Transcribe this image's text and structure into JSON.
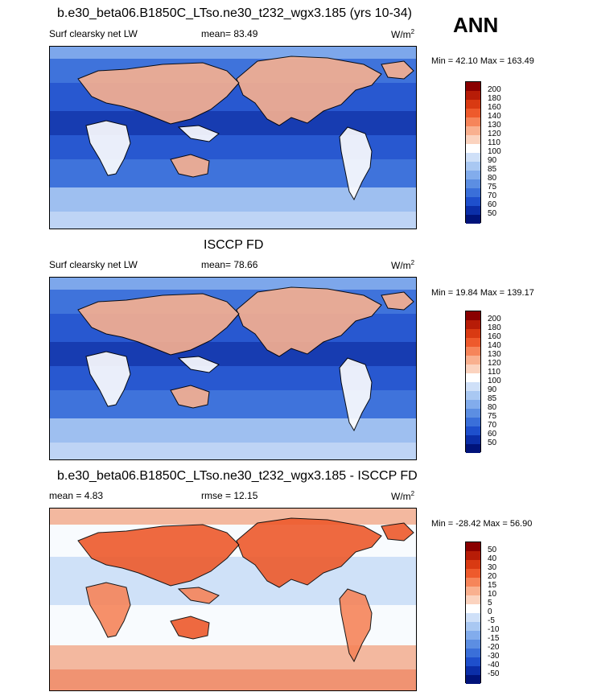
{
  "season": "ANN",
  "panels": [
    {
      "title": "b.e30_beta06.B1850C_LTso.ne30_t232_wgx3.185 (yrs 10-34)",
      "left_label": "Surf clearsky net LW",
      "stat_label": "mean=  83.49",
      "units": "W/m",
      "units_exp": "2",
      "minmax": "Min =  42.10 Max = 163.49",
      "levels": [
        "200",
        "180",
        "160",
        "140",
        "130",
        "120",
        "110",
        "100",
        "90",
        "85",
        "80",
        "75",
        "70",
        "60",
        "50"
      ],
      "colors": [
        "#8a0000",
        "#b71c07",
        "#d93a12",
        "#ee5a2c",
        "#f6855a",
        "#f9b08f",
        "#fbd3bf",
        "#ffffff",
        "#cfe0f8",
        "#a9c8f2",
        "#82acec",
        "#5c8ee2",
        "#3a6fd9",
        "#1e4fcc",
        "#0b2ea8",
        "#00137a"
      ],
      "palette": "absolute"
    },
    {
      "title": "ISCCP FD",
      "left_label": "Surf clearsky net LW",
      "stat_label": "mean=  78.66",
      "units": "W/m",
      "units_exp": "2",
      "minmax": "Min =  19.84 Max = 139.17",
      "levels": [
        "200",
        "180",
        "160",
        "140",
        "130",
        "120",
        "110",
        "100",
        "90",
        "85",
        "80",
        "75",
        "70",
        "60",
        "50"
      ],
      "colors": [
        "#8a0000",
        "#b71c07",
        "#d93a12",
        "#ee5a2c",
        "#f6855a",
        "#f9b08f",
        "#fbd3bf",
        "#ffffff",
        "#cfe0f8",
        "#a9c8f2",
        "#82acec",
        "#5c8ee2",
        "#3a6fd9",
        "#1e4fcc",
        "#0b2ea8",
        "#00137a"
      ],
      "palette": "absolute"
    },
    {
      "title": "b.e30_beta06.B1850C_LTso.ne30_t232_wgx3.185 - ISCCP FD",
      "left_label": "mean =   4.83",
      "stat_label": "rmse =  12.15",
      "units": "W/m",
      "units_exp": "2",
      "minmax": "Min = -28.42 Max =  56.90",
      "levels": [
        "50",
        "40",
        "30",
        "20",
        "15",
        "10",
        "5",
        "0",
        "-5",
        "-10",
        "-15",
        "-20",
        "-30",
        "-40",
        "-50"
      ],
      "colors": [
        "#8a0000",
        "#b71c07",
        "#d93a12",
        "#ee5a2c",
        "#f6855a",
        "#f9b08f",
        "#fbd3bf",
        "#ffffff",
        "#cfe0f8",
        "#a9c8f2",
        "#82acec",
        "#5c8ee2",
        "#3a6fd9",
        "#1e4fcc",
        "#0b2ea8",
        "#00137a"
      ],
      "palette": "difference"
    }
  ],
  "chart_data": [
    {
      "type": "heatmap",
      "title": "b.e30_beta06.B1850C_LTso.ne30_t232_wgx3.185 (yrs 10-34)",
      "variable": "Surf clearsky net LW",
      "mean": 83.49,
      "min": 42.1,
      "max": 163.49,
      "units": "W/m2"
    },
    {
      "type": "heatmap",
      "title": "ISCCP FD",
      "variable": "Surf clearsky net LW",
      "mean": 78.66,
      "min": 19.84,
      "max": 139.17,
      "units": "W/m2"
    },
    {
      "type": "heatmap",
      "title": "b.e30_beta06.B1850C_LTso.ne30_t232_wgx3.185 - ISCCP FD",
      "mean": 4.83,
      "rmse": 12.15,
      "min": -28.42,
      "max": 56.9,
      "units": "W/m2"
    }
  ]
}
